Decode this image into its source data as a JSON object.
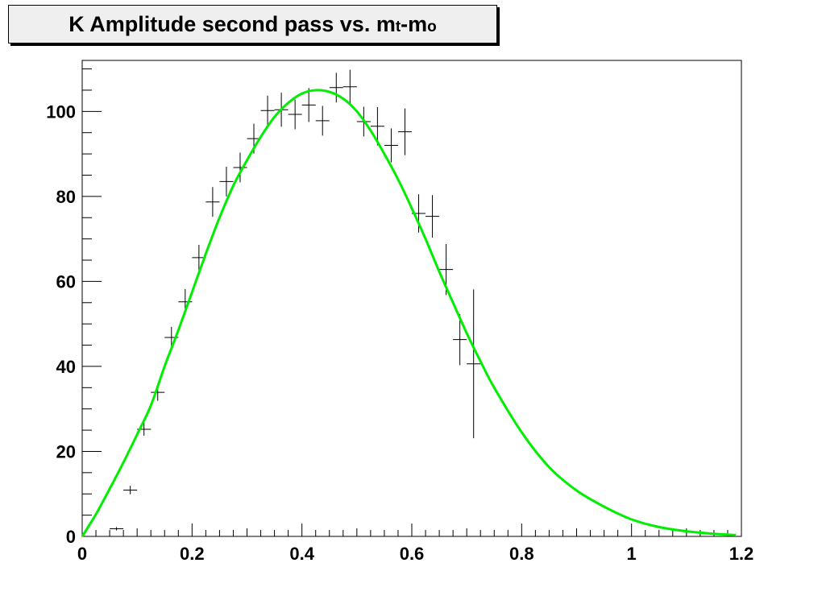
{
  "title": {
    "main": "K Amplitude second pass vs. m",
    "sub1": "t",
    "mid": "-m",
    "sub2": "o"
  },
  "chart_data": {
    "type": "scatter",
    "title": "K Amplitude second pass vs. m_t-m_o",
    "xlabel": "",
    "ylabel": "",
    "xlim": [
      0,
      1.2
    ],
    "ylim": [
      0,
      112
    ],
    "x_ticks": [
      "0",
      "0.2",
      "0.4",
      "0.6",
      "0.8",
      "1",
      "1.2"
    ],
    "y_ticks": [
      "0",
      "20",
      "40",
      "60",
      "80",
      "100"
    ],
    "grid": false,
    "series": [
      {
        "kind": "points-with-errors",
        "color": "#000000",
        "points": [
          {
            "x": 0.0625,
            "y": 1.8,
            "xerr": 0.0125,
            "yerr": 0.4
          },
          {
            "x": 0.0875,
            "y": 10.9,
            "xerr": 0.0125,
            "yerr": 1.0
          },
          {
            "x": 0.1125,
            "y": 25.2,
            "xerr": 0.0125,
            "yerr": 1.5
          },
          {
            "x": 0.1375,
            "y": 33.9,
            "xerr": 0.0125,
            "yerr": 2.0
          },
          {
            "x": 0.1625,
            "y": 46.8,
            "xerr": 0.0125,
            "yerr": 2.5
          },
          {
            "x": 0.1875,
            "y": 55.2,
            "xerr": 0.0125,
            "yerr": 3.0
          },
          {
            "x": 0.2125,
            "y": 65.6,
            "xerr": 0.0125,
            "yerr": 3.0
          },
          {
            "x": 0.2375,
            "y": 78.7,
            "xerr": 0.0125,
            "yerr": 3.5
          },
          {
            "x": 0.2625,
            "y": 83.5,
            "xerr": 0.0125,
            "yerr": 3.5
          },
          {
            "x": 0.2875,
            "y": 86.8,
            "xerr": 0.0125,
            "yerr": 3.5
          },
          {
            "x": 0.3125,
            "y": 93.6,
            "xerr": 0.0125,
            "yerr": 3.5
          },
          {
            "x": 0.3375,
            "y": 100.2,
            "xerr": 0.0125,
            "yerr": 3.5
          },
          {
            "x": 0.3625,
            "y": 100.4,
            "xerr": 0.0125,
            "yerr": 4.0
          },
          {
            "x": 0.3875,
            "y": 99.3,
            "xerr": 0.0125,
            "yerr": 3.5
          },
          {
            "x": 0.4125,
            "y": 101.5,
            "xerr": 0.0125,
            "yerr": 4.0
          },
          {
            "x": 0.4375,
            "y": 97.8,
            "xerr": 0.0125,
            "yerr": 3.5
          },
          {
            "x": 0.4625,
            "y": 105.6,
            "xerr": 0.0125,
            "yerr": 3.5
          },
          {
            "x": 0.4875,
            "y": 105.8,
            "xerr": 0.0125,
            "yerr": 4.0
          },
          {
            "x": 0.5125,
            "y": 97.6,
            "xerr": 0.0125,
            "yerr": 3.5
          },
          {
            "x": 0.5375,
            "y": 96.5,
            "xerr": 0.0125,
            "yerr": 4.5
          },
          {
            "x": 0.5625,
            "y": 92.0,
            "xerr": 0.0125,
            "yerr": 4.0
          },
          {
            "x": 0.5875,
            "y": 95.2,
            "xerr": 0.0125,
            "yerr": 5.5
          },
          {
            "x": 0.6125,
            "y": 76.0,
            "xerr": 0.0125,
            "yerr": 4.5
          },
          {
            "x": 0.6375,
            "y": 75.3,
            "xerr": 0.0125,
            "yerr": 5.0
          },
          {
            "x": 0.6625,
            "y": 62.8,
            "xerr": 0.0125,
            "yerr": 6.0
          },
          {
            "x": 0.6875,
            "y": 46.3,
            "xerr": 0.0125,
            "yerr": 6.0
          },
          {
            "x": 0.7125,
            "y": 40.6,
            "xerr": 0.0125,
            "yerr": 17.5
          }
        ]
      },
      {
        "kind": "curve",
        "color": "#00ee00",
        "points": [
          {
            "x": 0.0,
            "y": 0.0
          },
          {
            "x": 0.025,
            "y": 5.2
          },
          {
            "x": 0.05,
            "y": 11.2
          },
          {
            "x": 0.075,
            "y": 17.4
          },
          {
            "x": 0.1,
            "y": 24.0
          },
          {
            "x": 0.125,
            "y": 30.8
          },
          {
            "x": 0.15,
            "y": 40.0
          },
          {
            "x": 0.175,
            "y": 48.5
          },
          {
            "x": 0.2,
            "y": 57.5
          },
          {
            "x": 0.225,
            "y": 66.5
          },
          {
            "x": 0.25,
            "y": 75.0
          },
          {
            "x": 0.275,
            "y": 82.5
          },
          {
            "x": 0.3,
            "y": 88.5
          },
          {
            "x": 0.325,
            "y": 94.0
          },
          {
            "x": 0.35,
            "y": 98.7
          },
          {
            "x": 0.375,
            "y": 102.0
          },
          {
            "x": 0.4,
            "y": 104.2
          },
          {
            "x": 0.425,
            "y": 105.0
          },
          {
            "x": 0.45,
            "y": 104.6
          },
          {
            "x": 0.475,
            "y": 103.0
          },
          {
            "x": 0.5,
            "y": 100.0
          },
          {
            "x": 0.525,
            "y": 95.5
          },
          {
            "x": 0.55,
            "y": 90.0
          },
          {
            "x": 0.575,
            "y": 84.0
          },
          {
            "x": 0.6,
            "y": 77.2
          },
          {
            "x": 0.625,
            "y": 70.0
          },
          {
            "x": 0.65,
            "y": 62.3
          },
          {
            "x": 0.675,
            "y": 55.0
          },
          {
            "x": 0.7,
            "y": 47.8
          },
          {
            "x": 0.725,
            "y": 41.2
          },
          {
            "x": 0.75,
            "y": 35.0
          },
          {
            "x": 0.8,
            "y": 24.5
          },
          {
            "x": 0.85,
            "y": 16.3
          },
          {
            "x": 0.9,
            "y": 10.8
          },
          {
            "x": 0.95,
            "y": 7.0
          },
          {
            "x": 1.0,
            "y": 4.0
          },
          {
            "x": 1.05,
            "y": 2.2
          },
          {
            "x": 1.1,
            "y": 1.2
          },
          {
            "x": 1.15,
            "y": 0.6
          },
          {
            "x": 1.19,
            "y": 0.3
          }
        ]
      }
    ]
  }
}
